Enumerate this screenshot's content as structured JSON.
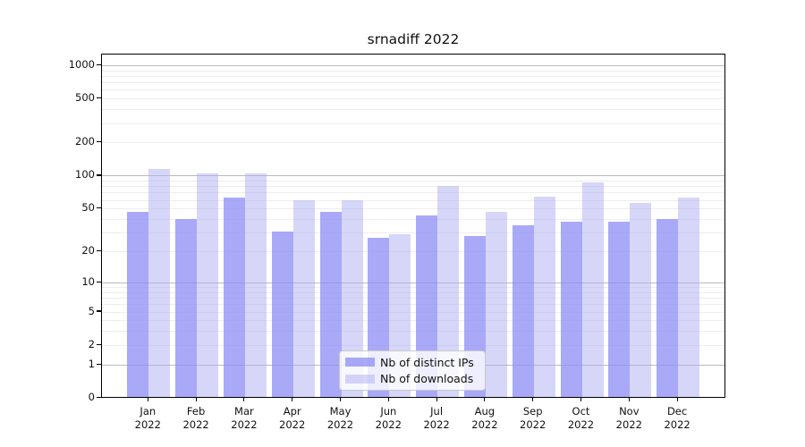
{
  "chart_data": {
    "type": "bar",
    "title": "srnadiff 2022",
    "categories": [
      "Jan",
      "Feb",
      "Mar",
      "Apr",
      "May",
      "Jun",
      "Jul",
      "Aug",
      "Sep",
      "Oct",
      "Nov",
      "Dec"
    ],
    "category_year": "2022",
    "series": [
      {
        "name": "Nb of distinct IPs",
        "color": "rgba(140,140,246,0.75)",
        "values": [
          45,
          39,
          61,
          30,
          45,
          26,
          42,
          27,
          34,
          37,
          37,
          39
        ]
      },
      {
        "name": "Nb of downloads",
        "color": "rgba(174,173,243,0.5)",
        "values": [
          112,
          101,
          102,
          58,
          58,
          28,
          78,
          45,
          62,
          84,
          55,
          61
        ]
      }
    ],
    "xlabel": "",
    "ylabel": "",
    "y_scale": "log1p",
    "y_ticks": [
      0,
      1,
      2,
      5,
      10,
      20,
      50,
      100,
      200,
      500,
      1000
    ],
    "ylim": [
      0,
      1240
    ],
    "grid": {
      "orientation": "horizontal",
      "major_lines": [
        1,
        10,
        100,
        1000
      ],
      "minor_lines": "2-9 per decade",
      "grid_on": true
    },
    "legend": {
      "position": "lower-center"
    },
    "colors": {
      "background": "#ffffff",
      "axis": "#000000",
      "text": "#111111",
      "grid_major": "#bbbbbb",
      "grid_minor": "#ededed",
      "legend_border": "#c9c9c9",
      "legend_background": "rgba(255,255,255,0.8)"
    }
  }
}
